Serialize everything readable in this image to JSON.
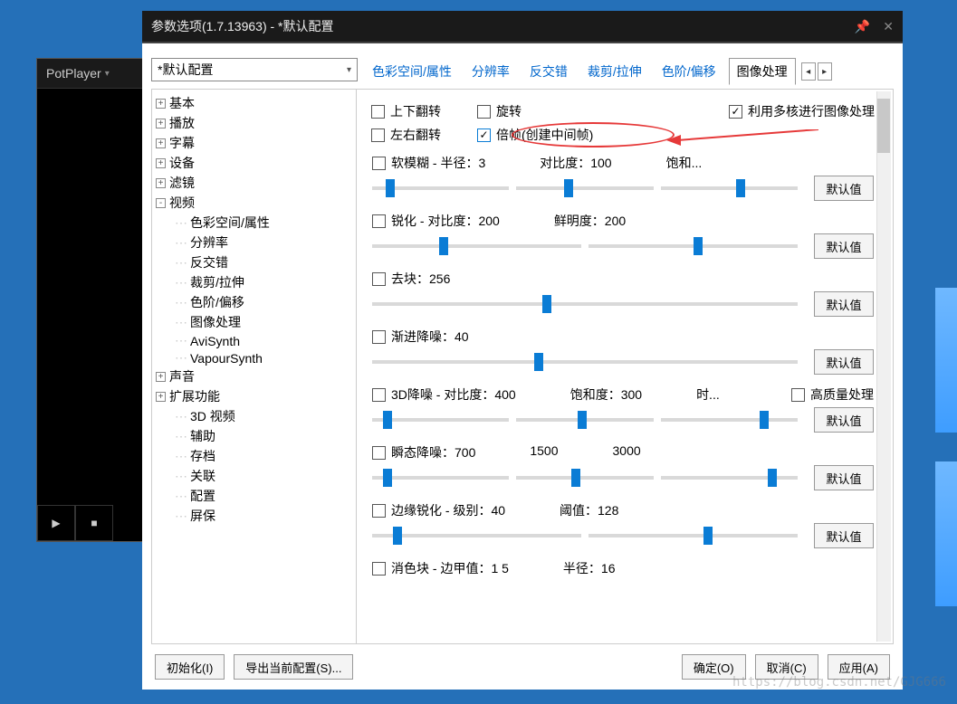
{
  "desktop": {
    "background": "#2570b8"
  },
  "potplayer": {
    "title": "PotPlayer",
    "dropdown_icon": "▾",
    "play_icon": "▶",
    "stop_icon": "■"
  },
  "dialog": {
    "title": "参数选项(1.7.13963) - *默认配置",
    "profile_selected": "*默认配置",
    "tabs": [
      "色彩空间/属性",
      "分辨率",
      "反交错",
      "裁剪/拉伸",
      "色阶/偏移",
      "图像处理"
    ],
    "active_tab_index": 5,
    "tab_left": "◂",
    "tab_right": "▸"
  },
  "tree": [
    {
      "label": "基本",
      "icon": "+",
      "indent": 0
    },
    {
      "label": "播放",
      "icon": "+",
      "indent": 0
    },
    {
      "label": "字幕",
      "icon": "+",
      "indent": 0
    },
    {
      "label": "设备",
      "icon": "+",
      "indent": 0
    },
    {
      "label": "滤镜",
      "icon": "+",
      "indent": 0
    },
    {
      "label": "视频",
      "icon": "-",
      "indent": 0
    },
    {
      "label": "色彩空间/属性",
      "icon": "",
      "indent": 1
    },
    {
      "label": "分辨率",
      "icon": "",
      "indent": 1
    },
    {
      "label": "反交错",
      "icon": "",
      "indent": 1
    },
    {
      "label": "裁剪/拉伸",
      "icon": "",
      "indent": 1
    },
    {
      "label": "色阶/偏移",
      "icon": "",
      "indent": 1
    },
    {
      "label": "图像处理",
      "icon": "",
      "indent": 1
    },
    {
      "label": "AviSynth",
      "icon": "",
      "indent": 1
    },
    {
      "label": "VapourSynth",
      "icon": "",
      "indent": 1
    },
    {
      "label": "声音",
      "icon": "+",
      "indent": 0
    },
    {
      "label": "扩展功能",
      "icon": "+",
      "indent": 0
    },
    {
      "label": "3D 视频",
      "icon": "",
      "indent": 1
    },
    {
      "label": "辅助",
      "icon": "",
      "indent": 1
    },
    {
      "label": "存档",
      "icon": "",
      "indent": 1
    },
    {
      "label": "关联",
      "icon": "",
      "indent": 1
    },
    {
      "label": "配置",
      "icon": "",
      "indent": 1
    },
    {
      "label": "屏保",
      "icon": "",
      "indent": 1
    }
  ],
  "top_checks": {
    "row1": [
      {
        "label": "上下翻转",
        "checked": false
      },
      {
        "label": "旋转",
        "checked": false
      },
      {
        "label": "利用多核进行图像处理",
        "checked": true
      }
    ],
    "row2": [
      {
        "label": "左右翻转",
        "checked": false
      },
      {
        "label": "倍帧(创建中间帧)",
        "checked": true,
        "highlighted": true
      }
    ]
  },
  "sections": [
    {
      "chk_label": "软模糊 - 半径：3",
      "extra_labels": [
        "对比度：100",
        "饱和..."
      ],
      "thumbs": [
        0.1,
        0.35,
        0.55
      ],
      "default_btn": "默认值"
    },
    {
      "chk_label": "锐化 - 对比度：200",
      "extra_labels": [
        "鲜明度：200"
      ],
      "thumbs": [
        0.32,
        0.5
      ],
      "default_btn": "默认值"
    },
    {
      "chk_label": "去块：256",
      "extra_labels": [],
      "thumbs": [
        0.4
      ],
      "default_btn": "默认值"
    },
    {
      "chk_label": "渐进降噪：40",
      "extra_labels": [],
      "thumbs": [
        0.38
      ],
      "default_btn": "默认值"
    },
    {
      "chk_label": "3D降噪 - 对比度：400",
      "extra_labels": [
        "饱和度：300",
        "时..."
      ],
      "extra_chk": "高质量处理",
      "thumbs": [
        0.08,
        0.45,
        0.72
      ],
      "default_btn": "默认值"
    },
    {
      "chk_label": "瞬态降噪：700",
      "extra_labels": [
        "1500",
        "3000"
      ],
      "thumbs": [
        0.08,
        0.4,
        0.78
      ],
      "default_btn": "默认值"
    },
    {
      "chk_label": "边缘锐化 - 级别：40",
      "extra_labels": [
        "阈值：128"
      ],
      "thumbs": [
        0.1,
        0.55
      ],
      "default_btn": "默认值"
    },
    {
      "chk_label": "消色块 - 边甲值：1 5",
      "extra_labels": [
        "半径：16"
      ],
      "thumbs": [],
      "default_btn": ""
    }
  ],
  "buttons": {
    "init": "初始化(I)",
    "export": "导出当前配置(S)...",
    "ok": "确定(O)",
    "cancel": "取消(C)",
    "apply": "应用(A)"
  },
  "watermark": "https://blog.csdn.net/GJG666",
  "colors": {
    "accent": "#0a7cd5",
    "highlight_red": "#e63939",
    "link": "#0066cc"
  }
}
